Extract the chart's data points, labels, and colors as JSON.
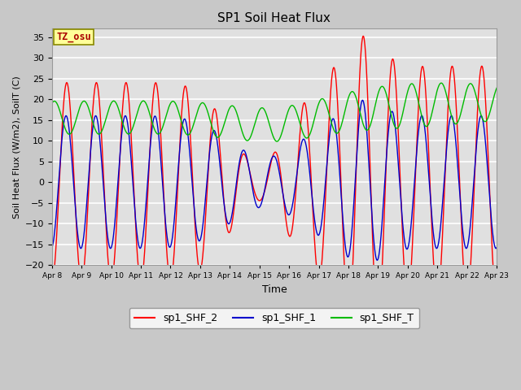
{
  "title": "SP1 Soil Heat Flux",
  "xlabel": "Time",
  "ylabel": "Soil Heat Flux (W/m2), SoilT (C)",
  "ylim": [
    -20,
    37
  ],
  "yticks": [
    -20,
    -15,
    -10,
    -5,
    0,
    5,
    10,
    15,
    20,
    25,
    30,
    35
  ],
  "x_tick_labels": [
    "Apr 8",
    "Apr 9",
    "Apr 10",
    "Apr 11",
    "Apr 12",
    "Apr 13",
    "Apr 14",
    "Apr 15",
    "Apr 16",
    "Apr 17",
    "Apr 18",
    "Apr 19",
    "Apr 20",
    "Apr 21",
    "Apr 22",
    "Apr 23"
  ],
  "legend_labels": [
    "sp1_SHF_2",
    "sp1_SHF_1",
    "sp1_SHF_T"
  ],
  "line_colors": [
    "#ff0000",
    "#0000cc",
    "#00bb00"
  ],
  "tz_label": "TZ_osu",
  "fig_facecolor": "#c8c8c8",
  "plot_facecolor": "#e0e0e0",
  "n_days": 15,
  "samples_per_day": 96
}
